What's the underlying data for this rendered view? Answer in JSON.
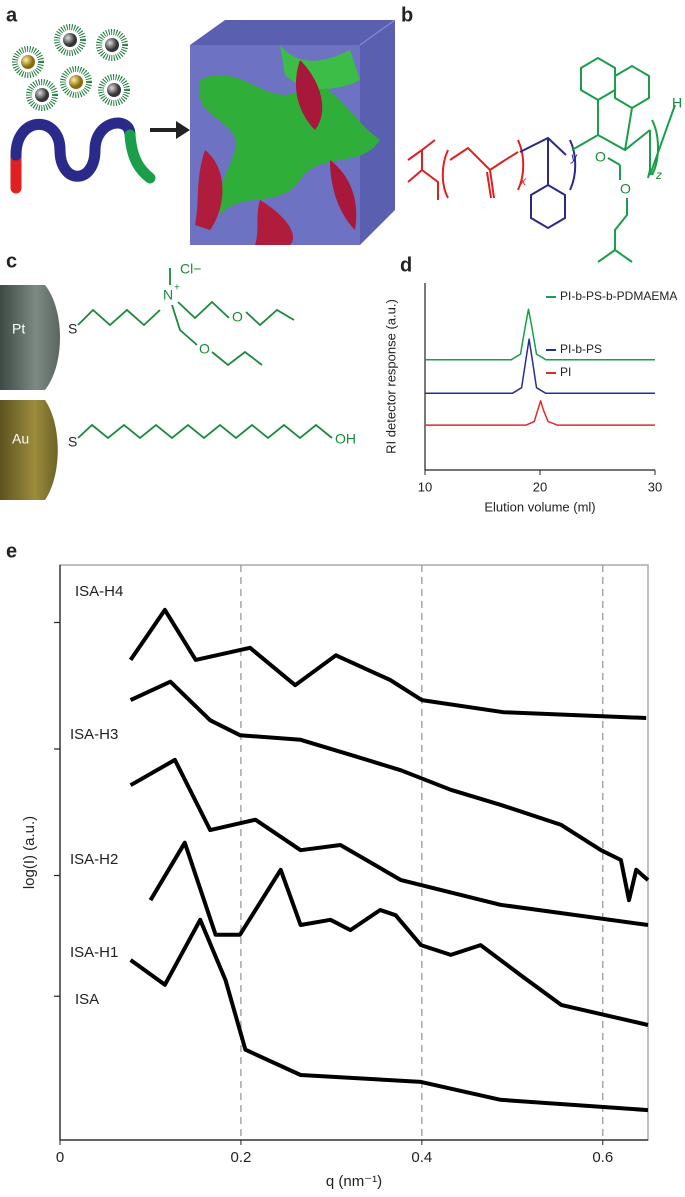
{
  "panels": {
    "a": {
      "label": "a"
    },
    "b": {
      "label": "b",
      "x": "x",
      "y": "y",
      "z": "z",
      "h": "H",
      "o1": "O",
      "o2": "O"
    },
    "c": {
      "label": "c",
      "pt": "Pt",
      "au": "Au",
      "s1": "S",
      "s2": "S",
      "n": "N",
      "plus": "+",
      "cl": "Cl−",
      "o1": "O",
      "o2": "O",
      "oh": "OH"
    },
    "d": {
      "label": "d"
    },
    "e": {
      "label": "e"
    }
  },
  "chart_data": [
    {
      "type": "line",
      "xlabel": "Elution volume (ml)",
      "ylabel": "RI detector response (a.u.)",
      "xlim": [
        10,
        30
      ],
      "xticks": [
        10,
        20,
        30
      ],
      "ylim": [
        0,
        1
      ],
      "legend": "upper right",
      "series": [
        {
          "name": "PI-b-PS-b-PDMAEMA",
          "color": "#1a9e4a",
          "x": [
            10,
            17.5,
            18.3,
            18.7,
            19,
            19.3,
            19.7,
            20.5,
            30
          ],
          "values": [
            0.59,
            0.59,
            0.62,
            0.76,
            0.86,
            0.76,
            0.62,
            0.59,
            0.59
          ]
        },
        {
          "name": "PI-b-PS",
          "color": "#2b2f8c",
          "x": [
            10,
            17.6,
            18.4,
            18.8,
            19.05,
            19.3,
            19.7,
            20.5,
            30
          ],
          "values": [
            0.41,
            0.41,
            0.44,
            0.6,
            0.7,
            0.6,
            0.44,
            0.41,
            0.41
          ]
        },
        {
          "name": "PI",
          "color": "#e02a2a",
          "x": [
            10,
            18.8,
            19.5,
            19.8,
            20.05,
            20.3,
            20.7,
            21.5,
            30
          ],
          "values": [
            0.24,
            0.24,
            0.26,
            0.32,
            0.37,
            0.32,
            0.26,
            0.24,
            0.24
          ]
        }
      ]
    },
    {
      "type": "line",
      "xlabel": "q (nm⁻¹)",
      "ylabel": "log(I) (a.u.)",
      "xlim": [
        0,
        0.65
      ],
      "xticks": [
        0,
        0.2,
        0.4,
        0.6
      ],
      "ylim": [
        0,
        1
      ],
      "yticks": [
        0.25,
        0.46,
        0.68,
        0.9
      ],
      "grid": true,
      "color": "#000000",
      "series": [
        {
          "name": "ISA-H4",
          "x": [
            0.078,
            0.116,
            0.15,
            0.21,
            0.26,
            0.305,
            0.365,
            0.4,
            0.49,
            0.648
          ],
          "values": [
            0.835,
            0.922,
            0.835,
            0.856,
            0.791,
            0.843,
            0.8,
            0.765,
            0.744,
            0.734
          ]
        },
        {
          "name": "ISA-H3",
          "x": [
            0.078,
            0.122,
            0.166,
            0.199,
            0.266,
            0.321,
            0.377,
            0.432,
            0.487,
            0.554,
            0.598,
            0.62,
            0.629,
            0.637,
            0.65
          ],
          "values": [
            0.765,
            0.797,
            0.73,
            0.704,
            0.696,
            0.67,
            0.643,
            0.609,
            0.583,
            0.548,
            0.504,
            0.487,
            0.417,
            0.47,
            0.452
          ]
        },
        {
          "name": "ISA-H2",
          "x": [
            0.078,
            0.127,
            0.166,
            0.216,
            0.266,
            0.31,
            0.377,
            0.487,
            0.65
          ],
          "values": [
            0.617,
            0.661,
            0.539,
            0.557,
            0.504,
            0.513,
            0.452,
            0.409,
            0.374
          ]
        },
        {
          "name": "ISA-H1",
          "x": [
            0.1,
            0.138,
            0.172,
            0.199,
            0.244,
            0.266,
            0.299,
            0.321,
            0.354,
            0.371,
            0.399,
            0.432,
            0.465,
            0.509,
            0.554,
            0.65
          ],
          "values": [
            0.417,
            0.517,
            0.357,
            0.357,
            0.47,
            0.374,
            0.383,
            0.365,
            0.4,
            0.391,
            0.339,
            0.322,
            0.339,
            0.287,
            0.235,
            0.2
          ]
        },
        {
          "name": "ISA",
          "x": [
            0.078,
            0.116,
            0.155,
            0.183,
            0.205,
            0.266,
            0.399,
            0.487,
            0.65
          ],
          "values": [
            0.313,
            0.27,
            0.383,
            0.278,
            0.157,
            0.113,
            0.101,
            0.07,
            0.052
          ]
        }
      ]
    }
  ]
}
